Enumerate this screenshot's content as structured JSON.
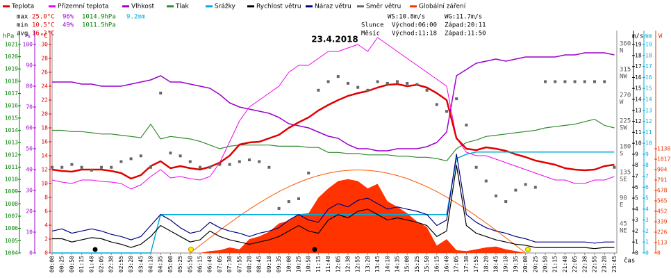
{
  "chart_data": {
    "type": "line",
    "title": "23.4.2018",
    "x_label": "čas",
    "legend": "top",
    "categories": [
      "00:00",
      "00:25",
      "00:50",
      "01:15",
      "01:40",
      "02:05",
      "02:30",
      "02:55",
      "03:20",
      "03:45",
      "04:10",
      "04:35",
      "05:00",
      "05:25",
      "05:50",
      "06:15",
      "06:40",
      "07:05",
      "07:30",
      "07:55",
      "08:20",
      "08:45",
      "09:10",
      "09:35",
      "10:00",
      "10:25",
      "10:50",
      "11:15",
      "11:40",
      "12:05",
      "12:30",
      "12:55",
      "13:20",
      "13:45",
      "14:10",
      "14:35",
      "15:00",
      "15:25",
      "15:50",
      "16:15",
      "16:40",
      "17:05",
      "17:30",
      "17:55",
      "18:20",
      "18:45",
      "19:10",
      "19:35",
      "20:00",
      "20:25",
      "20:50",
      "21:15",
      "21:40",
      "22:05",
      "22:30",
      "22:55",
      "23:20",
      "23:45"
    ],
    "stats": [
      {
        "label": "max",
        "items": [
          {
            "text": "25.0°C",
            "color": "#e00000"
          },
          {
            "text": "96%",
            "color": "#9900cc"
          },
          {
            "text": "1014.9hPa",
            "color": "#008000"
          },
          {
            "text": "9.2mm",
            "color": "#00aadd"
          }
        ]
      },
      {
        "label": "min",
        "items": [
          {
            "text": "10.5°C",
            "color": "#e00000"
          },
          {
            "text": "49%",
            "color": "#9900cc"
          },
          {
            "text": "1011.5hPa",
            "color": "#008000"
          }
        ]
      },
      {
        "label": "avg",
        "items": [
          {
            "text": "16.2°C",
            "color": "#e00000"
          }
        ]
      }
    ],
    "wind_info": [
      "WS:10.8m/s",
      "WG:11.7m/s"
    ],
    "sun": [
      "Slunce",
      "Východ:06:00",
      "Západ:20:11"
    ],
    "moon": [
      "Měsíc",
      "Východ:11:18",
      "Západ:11:50"
    ],
    "axes": {
      "pressure": {
        "unit": "hPa",
        "color": "#008000",
        "lim": [
          1004,
          1022.13
        ],
        "ticks": [
          1004,
          1005,
          1006,
          1007,
          1008,
          1009,
          1010,
          1011,
          1012,
          1013,
          1014,
          1015,
          1016,
          1017,
          1018,
          1019,
          1020,
          1021
        ]
      },
      "humidity": {
        "unit": "%",
        "color": "#9900cc",
        "lim": [
          0,
          106.67
        ],
        "ticks": [
          0,
          10,
          20,
          30,
          40,
          50,
          60,
          70,
          80,
          90,
          100
        ]
      },
      "temp": {
        "unit": "°C",
        "color": "#e00000",
        "lim": [
          0,
          32
        ],
        "ticks": [
          0,
          2,
          4,
          6,
          8,
          10,
          12,
          14,
          16,
          18,
          20,
          22,
          24,
          26,
          28,
          30
        ]
      },
      "dir": {
        "color": "#555555",
        "lim": [
          0,
          389.4
        ],
        "ticks": [
          {
            "value": 45,
            "label": "45",
            "dir": "NE"
          },
          {
            "value": 90,
            "label": "90",
            "dir": "E"
          },
          {
            "value": 135,
            "label": "135",
            "dir": "SE"
          },
          {
            "value": 180,
            "label": "180",
            "dir": "S"
          },
          {
            "value": 225,
            "label": "225",
            "dir": "SW"
          },
          {
            "value": 270,
            "label": "270",
            "dir": "W"
          },
          {
            "value": 315,
            "label": "315",
            "dir": "NW"
          },
          {
            "value": 360,
            "label": "360",
            "dir": "N"
          }
        ]
      },
      "wind": {
        "unit": "m/s",
        "color": "#000000",
        "lim": [
          0,
          20.27
        ],
        "ticks": [
          0,
          1,
          2,
          3,
          4,
          5,
          6,
          7,
          8,
          9,
          10,
          11,
          12,
          13,
          14,
          15,
          16,
          17,
          18,
          19
        ]
      },
      "rain": {
        "unit": "mm",
        "color": "#00aadd",
        "lim": [
          0,
          20.27
        ],
        "ticks": [
          0,
          1,
          2,
          3,
          4,
          5,
          6,
          7,
          8,
          9,
          10,
          11,
          12,
          13,
          14,
          15,
          16,
          17,
          18,
          19
        ]
      },
      "rad": {
        "unit": "W",
        "color": "#ee3300",
        "lim": [
          0,
          2411
        ],
        "ticks": [
          0,
          113,
          226,
          339,
          452,
          565,
          678,
          791,
          904,
          1017,
          1130
        ]
      }
    },
    "series": [
      {
        "name": "Globální záření",
        "color": "#ff3300",
        "axis": "rad",
        "style": "area",
        "values": [
          0,
          0,
          0,
          0,
          0,
          0,
          0,
          0,
          0,
          0,
          0,
          0,
          0,
          0,
          0,
          0,
          20,
          30,
          60,
          40,
          150,
          180,
          230,
          320,
          350,
          420,
          430,
          600,
          700,
          780,
          800,
          780,
          700,
          750,
          560,
          500,
          430,
          340,
          280,
          80,
          150,
          30,
          20,
          40,
          60,
          70,
          40,
          20,
          0,
          0,
          0,
          0,
          0,
          0,
          0,
          0,
          0,
          0
        ]
      },
      {
        "color": "#ff5500",
        "axis": "rad",
        "style": "line",
        "width": 1,
        "values": [
          null,
          null,
          null,
          null,
          null,
          null,
          null,
          null,
          null,
          null,
          null,
          null,
          null,
          null,
          0,
          83,
          165,
          246,
          325,
          401,
          474,
          542,
          606,
          665,
          718,
          765,
          806,
          839,
          866,
          885,
          896,
          900,
          896,
          885,
          866,
          839,
          806,
          765,
          718,
          665,
          606,
          542,
          474,
          401,
          325,
          246,
          165,
          83,
          0,
          null,
          null,
          null,
          null,
          null,
          null,
          null,
          null,
          null
        ]
      },
      {
        "name": "Tlak",
        "color": "#2e8b2e",
        "axis": "pressure",
        "style": "line",
        "width": 1.2,
        "values": [
          1014.0,
          1014.0,
          1013.9,
          1013.9,
          1013.8,
          1013.7,
          1013.7,
          1013.6,
          1013.5,
          1013.4,
          1014.5,
          1013.3,
          1013.5,
          1013.4,
          1013.3,
          1013.1,
          1012.8,
          1012.5,
          1012.7,
          1012.8,
          1012.8,
          1012.8,
          1012.8,
          1012.7,
          1012.7,
          1012.7,
          1012.6,
          1012.6,
          1012.2,
          1012.2,
          1012.1,
          1012.1,
          1012.0,
          1012.0,
          1012.0,
          1011.9,
          1011.9,
          1011.8,
          1011.8,
          1011.7,
          1011.5,
          1012.5,
          1013.0,
          1013.2,
          1013.5,
          1013.6,
          1013.7,
          1013.8,
          1013.9,
          1014.0,
          1014.2,
          1014.3,
          1014.4,
          1014.5,
          1014.7,
          1014.9,
          1014.4,
          1014.2
        ]
      },
      {
        "name": "Vlhkost",
        "color": "#9900cc",
        "axis": "humidity",
        "style": "line",
        "width": 1.5,
        "values": [
          82,
          82,
          82,
          81,
          81,
          80,
          80,
          80,
          81,
          82,
          83,
          85,
          82,
          82,
          81,
          80,
          79,
          76,
          72,
          70,
          69,
          68,
          67,
          65,
          62,
          61,
          60,
          58,
          56,
          55,
          52,
          50,
          50,
          49,
          49,
          50,
          50,
          50,
          51,
          53,
          58,
          85,
          88,
          91,
          92,
          93,
          92,
          93,
          94,
          94,
          94,
          94,
          95,
          95,
          96,
          96,
          96,
          95
        ]
      },
      {
        "name": "Přízemní teplota",
        "color": "#ee00ee",
        "axis": "temp",
        "style": "line",
        "width": 1,
        "values": [
          10.5,
          10.2,
          10.0,
          10.5,
          10.5,
          10.3,
          10.2,
          10.0,
          9.2,
          9.8,
          11.0,
          12.0,
          10.8,
          11.0,
          10.7,
          10.5,
          11.0,
          13.0,
          16.0,
          19.0,
          21.0,
          22.0,
          23.0,
          24.0,
          26.0,
          27.0,
          27.0,
          28.0,
          29.0,
          29.0,
          29.5,
          30.0,
          29.0,
          31.0,
          30.0,
          29.0,
          28.0,
          27.0,
          26.0,
          25.0,
          24.0,
          16.5,
          14.5,
          14.0,
          14.0,
          13.5,
          13.0,
          12.5,
          12.0,
          11.5,
          11.0,
          10.5,
          10.5,
          10.0,
          10.0,
          10.5,
          10.5,
          11.0
        ]
      },
      {
        "name": "Teplota",
        "color": "#e00000",
        "axis": "temp",
        "style": "line",
        "width": 2.5,
        "values": [
          12.0,
          11.8,
          11.7,
          12.0,
          12.0,
          12.0,
          11.8,
          11.5,
          10.7,
          11.2,
          12.5,
          13.2,
          12.2,
          12.5,
          12.2,
          12.0,
          12.4,
          13.0,
          14.0,
          15.6,
          15.9,
          16.0,
          16.5,
          17.0,
          18.0,
          18.8,
          19.5,
          20.5,
          21.3,
          22.0,
          22.6,
          23.0,
          23.3,
          23.8,
          24.2,
          24.3,
          24.0,
          24.2,
          23.8,
          23.0,
          22.0,
          16.5,
          15.0,
          14.8,
          15.2,
          15.0,
          14.7,
          14.2,
          13.8,
          13.3,
          13.0,
          12.7,
          12.2,
          12.0,
          11.9,
          12.0,
          12.5,
          12.7
        ]
      },
      {
        "name": "Srážky",
        "color": "#00aadd",
        "axis": "rain",
        "style": "line",
        "width": 1.5,
        "values": [
          0,
          0,
          0,
          0,
          0,
          0,
          0,
          0,
          0,
          0,
          0,
          3.5,
          3.5,
          3.5,
          3.5,
          3.5,
          3.5,
          3.5,
          3.5,
          3.5,
          3.5,
          3.5,
          3.5,
          3.5,
          3.5,
          3.5,
          3.5,
          3.5,
          3.5,
          3.5,
          3.5,
          3.5,
          3.5,
          3.5,
          3.5,
          3.5,
          3.5,
          3.5,
          3.5,
          3.5,
          3.5,
          8.6,
          9.0,
          9.2,
          9.2,
          9.2,
          9.2,
          9.2,
          9.2,
          9.2,
          9.2,
          9.2,
          9.2,
          9.2,
          9.2,
          9.2,
          9.2,
          9.2
        ]
      },
      {
        "name": "Směr větru",
        "color": "#666666",
        "axis": "dir",
        "style": "dots",
        "values": [
          150,
          150,
          155,
          150,
          145,
          150,
          150,
          160,
          165,
          170,
          150,
          280,
          175,
          170,
          160,
          150,
          150,
          155,
          155,
          160,
          163,
          160,
          150,
          78,
          90,
          95,
          140,
          285,
          300,
          309,
          297,
          290,
          285,
          300,
          297,
          300,
          297,
          295,
          285,
          260,
          248,
          270,
          224,
          150,
          126,
          100,
          90,
          110,
          120,
          115,
          300,
          300,
          300,
          300,
          300,
          300,
          300,
          150
        ]
      },
      {
        "name": "Náraz větru",
        "color": "#000080",
        "axis": "wind",
        "style": "line",
        "width": 1.2,
        "values": [
          2.0,
          2.2,
          1.8,
          2.0,
          2.2,
          2.0,
          1.7,
          1.5,
          1.2,
          1.5,
          2.5,
          3.5,
          3.0,
          2.3,
          1.8,
          2.0,
          2.8,
          2.3,
          2.0,
          1.8,
          1.5,
          1.8,
          2.0,
          2.3,
          3.0,
          3.5,
          3.0,
          2.8,
          4.0,
          4.5,
          4.2,
          4.8,
          5.0,
          4.5,
          4.0,
          4.2,
          4.0,
          3.8,
          3.5,
          2.5,
          3.0,
          9.0,
          3.5,
          2.8,
          2.3,
          2.0,
          1.8,
          1.5,
          1.3,
          1.0,
          1.0,
          1.0,
          1.0,
          1.0,
          1.0,
          0.9,
          1.0,
          1.0
        ]
      },
      {
        "name": "Rychlost větru",
        "color": "#000000",
        "axis": "wind",
        "style": "line",
        "width": 1.2,
        "values": [
          1.3,
          1.3,
          1.0,
          1.2,
          1.4,
          1.3,
          1.0,
          0.8,
          0.5,
          0.8,
          1.5,
          2.5,
          2.0,
          1.5,
          1.0,
          1.2,
          2.0,
          1.5,
          1.2,
          1.0,
          0.8,
          1.0,
          1.2,
          1.5,
          2.0,
          2.5,
          2.0,
          1.8,
          3.0,
          3.5,
          3.2,
          3.8,
          4.0,
          3.5,
          3.0,
          3.2,
          3.0,
          2.8,
          2.5,
          1.5,
          2.0,
          8.0,
          2.5,
          1.8,
          1.5,
          1.2,
          1.0,
          0.8,
          0.7,
          0.5,
          0.5,
          0.5,
          0.5,
          0.5,
          0.5,
          0.4,
          0.5,
          0.5
        ]
      }
    ]
  }
}
